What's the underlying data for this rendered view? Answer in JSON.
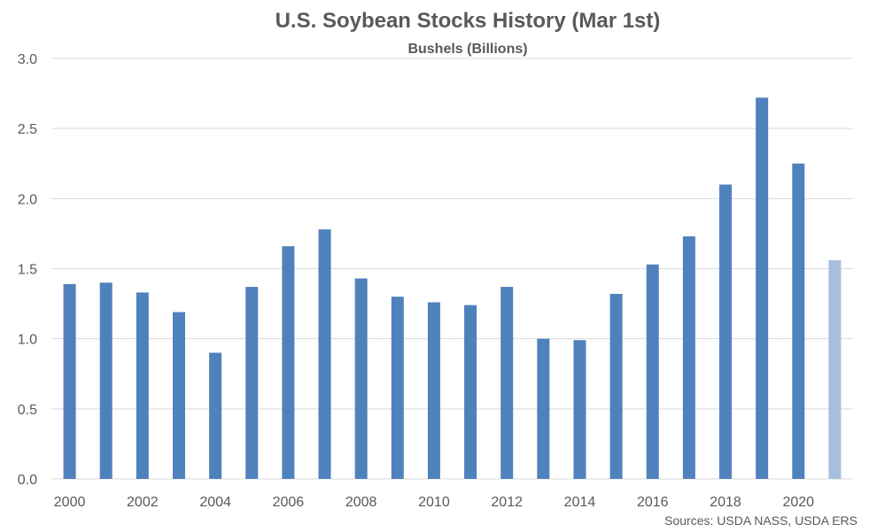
{
  "chart_data": {
    "type": "bar",
    "title": "U.S. Soybean Stocks History (Mar 1st)",
    "subtitle": "Bushels (Billions)",
    "xlabel": "",
    "ylabel": "",
    "ylim": [
      0,
      3.0
    ],
    "yticks": [
      "0.0",
      "0.5",
      "1.0",
      "1.5",
      "2.0",
      "2.5",
      "3.0"
    ],
    "grid": true,
    "categories": [
      "2000",
      "2001",
      "2002",
      "2003",
      "2004",
      "2005",
      "2006",
      "2007",
      "2008",
      "2009",
      "2010",
      "2011",
      "2012",
      "2013",
      "2014",
      "2015",
      "2016",
      "2017",
      "2018",
      "2019",
      "2020",
      "2021"
    ],
    "xtick_labels": [
      "2000",
      "2002",
      "2004",
      "2006",
      "2008",
      "2010",
      "2012",
      "2014",
      "2016",
      "2018",
      "2020"
    ],
    "values": [
      1.39,
      1.4,
      1.33,
      1.19,
      0.9,
      1.37,
      1.66,
      1.78,
      1.43,
      1.3,
      1.26,
      1.24,
      1.37,
      1.0,
      0.99,
      1.32,
      1.53,
      1.73,
      2.1,
      2.72,
      2.25,
      1.56
    ],
    "colors": {
      "bar": "#4f81bd",
      "highlight": "#a7bfdd",
      "grid": "#d9d9d9"
    },
    "highlight_categories": [
      "2021"
    ],
    "source": "Sources: USDA NASS, USDA ERS"
  }
}
